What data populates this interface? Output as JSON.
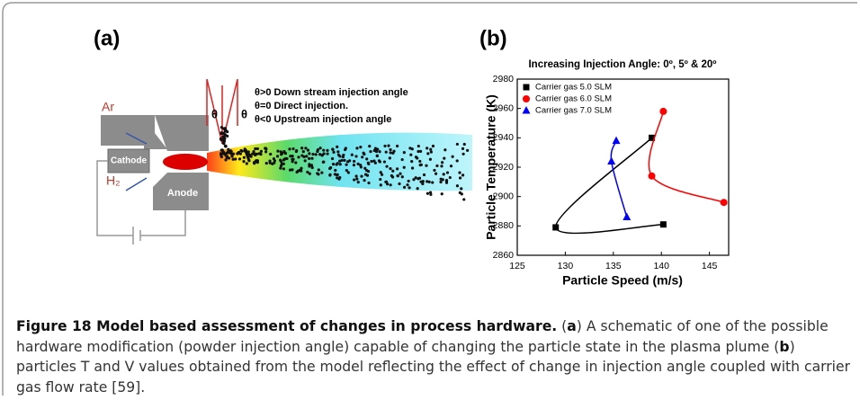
{
  "panel_a": {
    "label": "(a)",
    "notes": [
      "θ>0 Down stream injection angle",
      "θ=0 Direct injection.",
      "θ<0 Upstream injection angle"
    ],
    "theta": "θ",
    "gas_1": "Ar",
    "gas_2": "H₂",
    "cathode": "Cathode",
    "anode": "Anode"
  },
  "panel_b": {
    "label": "(b)"
  },
  "chart_data": {
    "type": "line",
    "title": "Increasing Injection Angle: 0º, 5º & 20º",
    "x_label": "Particle Speed (m/s)",
    "y_label": "Particle Temperature (K)",
    "xlim": [
      125,
      147
    ],
    "ylim": [
      2860,
      2980
    ],
    "xticks": [
      125,
      130,
      135,
      140,
      145
    ],
    "yticks": [
      2860,
      2880,
      2900,
      2920,
      2940,
      2960,
      2980
    ],
    "legend": "upper left",
    "series": [
      {
        "name": "Carrier gas 5.0 SLM",
        "color": "#000000",
        "marker": "square",
        "x": [
          139,
          129,
          140.2
        ],
        "values": [
          2940,
          2879,
          2881
        ]
      },
      {
        "name": "Carrier gas 6.0 SLM",
        "color": "#ff0000",
        "marker": "circle",
        "x": [
          140.2,
          139,
          146.5
        ],
        "values": [
          2958,
          2914,
          2896
        ]
      },
      {
        "name": "Carrier gas 7.0 SLM",
        "color": "#0000ff",
        "marker": "triangle",
        "x": [
          135.3,
          134.8,
          136.4
        ],
        "values": [
          2938,
          2924,
          2886
        ]
      }
    ]
  },
  "caption": {
    "title": "Figure 18 Model based assessment of changes in process hardware.",
    "runs": [
      " (",
      "a",
      ") A schematic of one of the possible hardware modification (powder injection angle) capable of changing the particle state in the plasma plume (",
      "b",
      ") particles T and V values obtained from the model reflecting the effect of change in injection angle coupled with carrier gas flow rate [59]."
    ]
  }
}
